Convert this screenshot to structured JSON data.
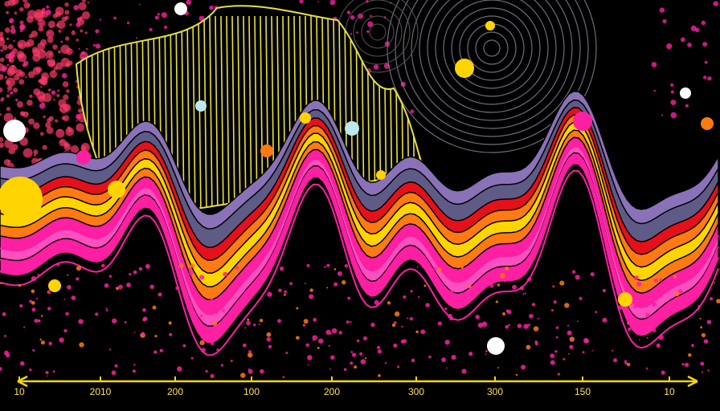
{
  "axis": {
    "tick_labels": [
      "10",
      "2010",
      "200",
      "100",
      "200",
      "300",
      "300",
      "150",
      "10"
    ],
    "color": "#f5d800"
  },
  "palette": {
    "background": "#000000",
    "lavender": "#8a72b8",
    "slate": "#5e5c86",
    "red": "#e4101a",
    "orange": "#ff7a12",
    "yellow": "#ffd400",
    "magenta": "#ff1fa2",
    "pink": "#ff4fc0",
    "hatch": "#e8e040",
    "splatter_left": "#ff3a6a"
  }
}
